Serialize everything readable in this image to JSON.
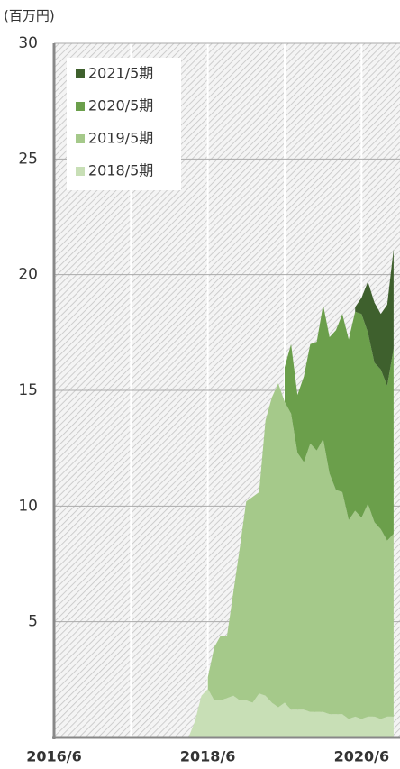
{
  "chart_data": {
    "type": "area",
    "stacked": true,
    "y_label": "(百万円)",
    "x": [
      "2018/3",
      "2018/4",
      "2018/5",
      "2018/6",
      "2018/7",
      "2018/8",
      "2018/9",
      "2018/10",
      "2018/11",
      "2018/12",
      "2019/1",
      "2019/2",
      "2019/3",
      "2019/4",
      "2019/5",
      "2019/6",
      "2019/7",
      "2019/8",
      "2019/9",
      "2019/10",
      "2019/11",
      "2019/12",
      "2020/1",
      "2020/2",
      "2020/3",
      "2020/4",
      "2020/5",
      "2020/6",
      "2020/7",
      "2020/8",
      "2020/9",
      "2020/10",
      "2020/11"
    ],
    "series": [
      {
        "name": "2018/5期",
        "color": "#c8dfb6",
        "values": [
          0,
          0.7,
          1.8,
          2.1,
          1.6,
          1.6,
          1.7,
          1.8,
          1.6,
          1.6,
          1.5,
          1.9,
          1.8,
          1.5,
          1.3,
          1.5,
          1.2,
          1.2,
          1.2,
          1.1,
          1.1,
          1.1,
          1.0,
          1.0,
          1.0,
          0.8,
          0.9,
          0.8,
          0.9,
          0.9,
          0.8,
          0.9,
          0.9
        ]
      },
      {
        "name": "2019/5期",
        "color": "#a5c98a",
        "values": [
          null,
          null,
          null,
          0.5,
          2.3,
          2.8,
          2.7,
          4.5,
          6.6,
          8.6,
          8.9,
          8.7,
          11.9,
          13.2,
          14.0,
          13.0,
          12.8,
          11.1,
          10.7,
          11.6,
          11.3,
          11.8,
          10.4,
          9.7,
          9.6,
          8.6,
          8.9,
          8.7,
          9.2,
          8.4,
          8.2,
          7.6,
          7.9
        ]
      },
      {
        "name": "2020/5期",
        "color": "#6b9f4b",
        "values": [
          null,
          null,
          null,
          null,
          null,
          null,
          null,
          null,
          null,
          null,
          null,
          null,
          null,
          null,
          null,
          1.5,
          3.0,
          2.5,
          3.7,
          4.3,
          4.7,
          5.8,
          5.9,
          6.9,
          7.7,
          7.8,
          8.6,
          8.8,
          7.4,
          6.9,
          6.9,
          6.7,
          8.0
        ]
      },
      {
        "name": "2021/5期",
        "color": "#3e602d",
        "values": [
          null,
          null,
          null,
          null,
          null,
          null,
          null,
          null,
          null,
          null,
          null,
          null,
          null,
          null,
          null,
          null,
          null,
          null,
          null,
          null,
          null,
          null,
          null,
          null,
          null,
          null,
          0.2,
          0.7,
          2.2,
          2.6,
          2.4,
          3.5,
          4.3
        ]
      }
    ],
    "xlim": [
      "2016/6",
      "2020/12"
    ],
    "xticks": [
      "2016/6",
      "2018/6",
      "2020/6"
    ],
    "xgrid": [
      "2016/6",
      "2017/6",
      "2018/6",
      "2019/6",
      "2020/6"
    ],
    "ylim": [
      0,
      30
    ],
    "yticks": [
      5,
      10,
      15,
      20,
      25,
      30
    ],
    "grid": true,
    "legend": "upper left"
  }
}
